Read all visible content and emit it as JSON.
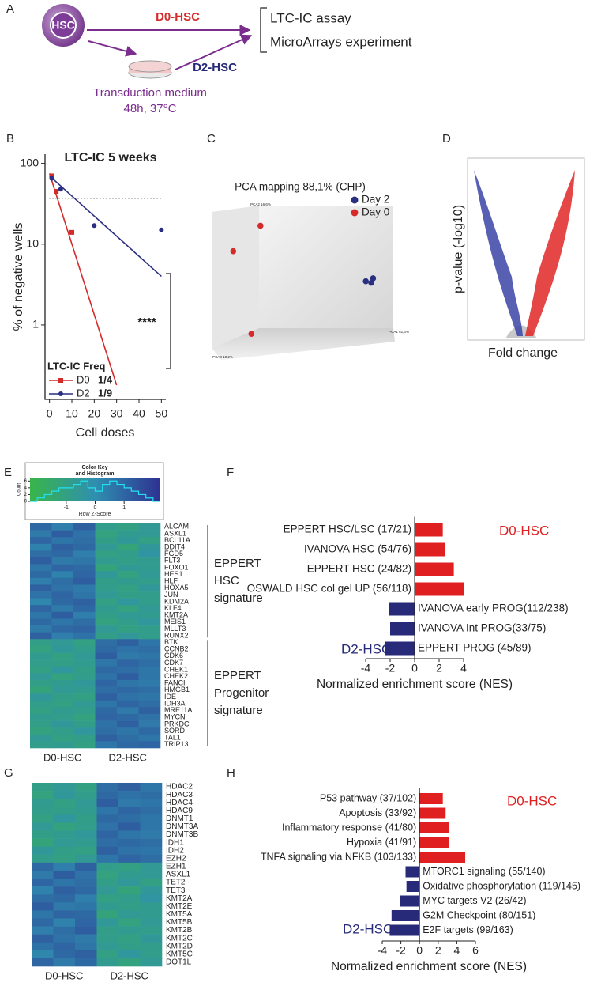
{
  "panel_labels": [
    "A",
    "B",
    "C",
    "D",
    "E",
    "F",
    "G",
    "H"
  ],
  "diagram": {
    "cell": "HSC",
    "d0": "D0-HSC",
    "d2": "D2-HSC",
    "outputs": [
      "LTC-IC assay",
      "MicroArrays experiment"
    ],
    "medium": [
      "Transduction medium",
      "48h, 37°C"
    ]
  },
  "chart_data": [
    {
      "type": "line",
      "title": "LTC-IC 5 weeks",
      "xlabel": "Cell doses",
      "ylabel": "% of negative wells",
      "log_y": true,
      "xlim": [
        -2,
        52
      ],
      "ylim": [
        0.12,
        130
      ],
      "xticks": [
        0,
        10,
        20,
        30,
        40,
        50
      ],
      "yticks": [
        1,
        10,
        100
      ],
      "threshold": 37,
      "annotation": "****",
      "legend_title": "LTC-IC Freq",
      "series": [
        {
          "name": "D0",
          "freq": "1/4",
          "color": "#d42a2a",
          "marker": "square",
          "x": [
            1,
            3,
            10
          ],
          "values": [
            70,
            45,
            14
          ],
          "fit_x": [
            0,
            30
          ],
          "fit_values": [
            75,
            0.18
          ]
        },
        {
          "name": "D2",
          "freq": "1/9",
          "color": "#2b2f80",
          "marker": "circle",
          "x": [
            1,
            5,
            20,
            50
          ],
          "values": [
            65,
            48,
            17,
            15
          ],
          "fit_x": [
            0,
            50
          ],
          "fit_values": [
            70,
            4
          ]
        }
      ]
    },
    {
      "type": "scatter3d",
      "title": "PCA mapping 88,1% (CHP)",
      "axis_labels": [
        "PCA2 16,6%",
        "PCA1 61,4%",
        "PCA3 10,2%"
      ],
      "xlim": [
        0,
        100
      ],
      "ylim": [
        0,
        100
      ],
      "series": [
        {
          "name": "Day 2",
          "color": "#2b2f80",
          "x": [
            84,
            87,
            88
          ],
          "values": [
            47,
            46,
            49
          ]
        },
        {
          "name": "Day 0",
          "color": "#d42a2a",
          "x": [
            26,
            11,
            21
          ],
          "values": [
            84,
            67,
            12
          ]
        }
      ]
    },
    {
      "type": "volcano",
      "xlabel": "Fold change",
      "ylabel": "p-value (-log10)",
      "colors": [
        "#3b44a6",
        "#e02727"
      ]
    },
    {
      "type": "heatmap",
      "column_groups": [
        "D0-HSC",
        "D2-HSC"
      ],
      "colors": [
        "#39b54a",
        "#2f8fb0",
        "#2e3192"
      ],
      "color_key": {
        "title": [
          "Color Key",
          "and Histogram"
        ],
        "xlabel": "Row Z-Score",
        "ylabel": "Count",
        "xlim": [
          -2.25,
          2.25
        ],
        "xticks": [
          -1,
          0,
          1
        ],
        "ylim": [
          0,
          7
        ],
        "yticks": [
          0,
          2,
          4,
          6
        ],
        "hist_color": "#22e0f0",
        "bins": [
          -2.25,
          -2,
          -1.75,
          -1.5,
          -1.25,
          -1,
          -0.75,
          -0.5,
          -0.25,
          0,
          0.25,
          0.5,
          0.75,
          1,
          1.25,
          1.5,
          1.75,
          2,
          2.25
        ],
        "counts": [
          0,
          1,
          2,
          3,
          4,
          4,
          5,
          6,
          4,
          3,
          5,
          6,
          5,
          4,
          3,
          2,
          1,
          0
        ]
      },
      "row_groups": [
        {
          "label": [
            "EPPERT",
            "HSC",
            "signature"
          ],
          "rows": [
            "ALCAM",
            "ASXL1",
            "BCL11A",
            "DDIT4",
            "FGD5",
            "FLT3",
            "FOXO1",
            "HES1",
            "HLF",
            "HOXA5",
            "JUN",
            "KDM2A",
            "KLF4",
            "KMT2A",
            "MEIS1",
            "MLLT3",
            "RUNX2"
          ],
          "values": [
            [
              0.9,
              0.4,
              1.1,
              -0.8,
              -1.0,
              -0.6
            ],
            [
              0.5,
              1.2,
              0.7,
              -1.1,
              -0.7,
              -0.6
            ],
            [
              1.0,
              0.6,
              0.8,
              -0.9,
              -0.5,
              -1.0
            ],
            [
              0.3,
              1.1,
              0.9,
              -0.6,
              -1.2,
              -0.5
            ],
            [
              0.8,
              0.9,
              0.4,
              -1.0,
              -0.8,
              -0.3
            ],
            [
              1.2,
              0.5,
              0.6,
              -0.7,
              -0.9,
              -0.7
            ],
            [
              0.6,
              1.0,
              0.9,
              -1.2,
              -0.6,
              -0.7
            ],
            [
              0.9,
              0.3,
              1.0,
              -0.5,
              -1.1,
              -0.6
            ],
            [
              0.4,
              0.8,
              1.2,
              -0.9,
              -0.7,
              -0.8
            ],
            [
              1.1,
              0.7,
              0.5,
              -0.8,
              -1.0,
              -0.5
            ],
            [
              0.7,
              1.0,
              0.6,
              -0.6,
              -0.9,
              -0.8
            ],
            [
              0.2,
              0.9,
              1.1,
              -1.0,
              -0.4,
              -0.8
            ],
            [
              1.0,
              0.5,
              0.9,
              -0.7,
              -1.1,
              -0.6
            ],
            [
              0.6,
              1.2,
              0.4,
              -0.9,
              -0.6,
              -0.7
            ],
            [
              0.9,
              0.6,
              0.8,
              -1.1,
              -0.8,
              -0.4
            ],
            [
              0.5,
              0.9,
              1.0,
              -0.6,
              -1.0,
              -0.8
            ],
            [
              1.1,
              0.4,
              0.7,
              -0.9,
              -0.5,
              -0.8
            ]
          ]
        },
        {
          "label": [
            "EPPERT",
            "Progenitor",
            "signature"
          ],
          "rows": [
            "BTK",
            "CCNB2",
            "CDK6",
            "CDK7",
            "CHEK1",
            "CHEK2",
            "FANCI",
            "HMGB1",
            "IDE",
            "IDH3A",
            "MRE11A",
            "MYCN",
            "PRKDC",
            "SORD",
            "TAL1",
            "TRIP13"
          ],
          "values": [
            [
              -0.9,
              -0.6,
              -1.0,
              0.8,
              1.1,
              0.6
            ],
            [
              -1.1,
              -0.5,
              -0.8,
              0.9,
              0.7,
              0.8
            ],
            [
              -0.7,
              -1.0,
              -0.6,
              1.2,
              0.5,
              0.6
            ],
            [
              -0.8,
              -0.9,
              -0.7,
              0.6,
              1.0,
              0.8
            ],
            [
              -1.0,
              -0.4,
              -0.9,
              0.9,
              0.8,
              0.6
            ],
            [
              -0.6,
              -1.1,
              -0.8,
              0.7,
              1.2,
              0.6
            ],
            [
              -0.9,
              -0.7,
              -0.5,
              1.0,
              0.6,
              0.5
            ],
            [
              -1.2,
              -0.6,
              -0.7,
              0.8,
              0.9,
              0.8
            ],
            [
              -0.5,
              -0.9,
              -1.0,
              1.1,
              0.7,
              0.6
            ],
            [
              -0.8,
              -1.0,
              -0.6,
              0.6,
              1.0,
              0.8
            ],
            [
              -1.0,
              -0.7,
              -0.8,
              0.9,
              0.5,
              1.1
            ],
            [
              -0.7,
              -0.8,
              -1.1,
              1.0,
              0.9,
              0.7
            ],
            [
              -0.9,
              -0.5,
              -0.9,
              0.7,
              1.1,
              0.5
            ],
            [
              -1.1,
              -0.8,
              -0.4,
              0.8,
              0.6,
              0.9
            ],
            [
              -0.6,
              -1.0,
              -0.9,
              1.1,
              0.8,
              0.6
            ],
            [
              -0.8,
              -0.7,
              -1.0,
              0.6,
              0.9,
              1.0
            ]
          ]
        }
      ]
    },
    {
      "type": "hbar",
      "xlabel": "Normalized enrichment score (NES)",
      "xlim": [
        -4,
        4
      ],
      "xticks": [
        -4,
        -2,
        0,
        2,
        4
      ],
      "pos_color": "#e02020",
      "neg_color": "#262a78",
      "annotations": [
        {
          "text": "D0-HSC",
          "color": "#e02020"
        },
        {
          "text": "D2-HSC",
          "color": "#262a78"
        }
      ],
      "categories": [
        "EPPERT HSC/LSC (17/21)",
        "IVANOVA HSC (54/76)",
        "EPPERT HSC (24/82)",
        "OSWALD HSC col gel UP (56/118)",
        "IVANOVA early PROG(112/238)",
        "IVANOVA Int PROG(33/75)",
        "EPPERT PROG (45/89)"
      ],
      "values": [
        2.3,
        2.5,
        3.2,
        4.0,
        -2.1,
        -2.0,
        -2.4
      ]
    },
    {
      "type": "heatmap",
      "column_groups": [
        "D0-HSC",
        "D2-HSC"
      ],
      "colors": [
        "#39b54a",
        "#2f8fb0",
        "#2e3192"
      ],
      "zlim": [
        -2.25,
        2.25
      ],
      "row_groups": [
        {
          "rows": [
            "HDAC2",
            "HDAC3",
            "HDAC4",
            "HDAC9",
            "DNMT1",
            "DNMT3A",
            "DNMT3B",
            "IDH1",
            "IDH2",
            "EZH2",
            "EZH1",
            "ASXL1",
            "TET2",
            "TET3",
            "KMT2A",
            "KMT2E",
            "KMT5A",
            "KMT5B",
            "KMT2B",
            "KMT2C",
            "KMT2D",
            "KMT5C",
            "DOT1L"
          ],
          "values": [
            [
              -0.9,
              -0.6,
              -1.0,
              0.8,
              1.1,
              0.6
            ],
            [
              -1.1,
              -0.5,
              -0.8,
              0.9,
              0.7,
              0.8
            ],
            [
              -0.7,
              -1.0,
              -0.6,
              1.2,
              0.5,
              0.6
            ],
            [
              -0.8,
              -0.9,
              -0.7,
              0.6,
              1.0,
              0.8
            ],
            [
              -1.0,
              -0.4,
              -0.9,
              0.9,
              0.8,
              0.6
            ],
            [
              -0.6,
              -1.1,
              -0.8,
              0.7,
              1.2,
              0.6
            ],
            [
              -0.9,
              -0.7,
              -0.5,
              1.0,
              0.6,
              0.5
            ],
            [
              -1.2,
              -0.6,
              -0.7,
              0.8,
              0.9,
              0.8
            ],
            [
              -0.5,
              -0.9,
              -1.0,
              1.1,
              0.7,
              0.6
            ],
            [
              -0.8,
              -1.0,
              -0.6,
              0.6,
              1.0,
              0.8
            ],
            [
              0.9,
              0.4,
              1.1,
              -0.8,
              -1.0,
              -0.6
            ],
            [
              0.5,
              1.2,
              0.7,
              -1.1,
              -0.7,
              -0.6
            ],
            [
              1.0,
              0.6,
              0.8,
              -0.9,
              -0.5,
              -1.0
            ],
            [
              0.3,
              1.1,
              0.9,
              -0.6,
              -1.2,
              -0.5
            ],
            [
              0.8,
              0.9,
              0.4,
              -1.0,
              -0.8,
              -0.3
            ],
            [
              1.2,
              0.5,
              0.6,
              -0.7,
              -0.9,
              -0.7
            ],
            [
              0.6,
              1.0,
              0.9,
              -1.2,
              -0.6,
              -0.7
            ],
            [
              0.9,
              0.3,
              1.0,
              -0.5,
              -1.1,
              -0.6
            ],
            [
              0.4,
              0.8,
              1.2,
              -0.9,
              -0.7,
              -0.8
            ],
            [
              1.1,
              0.7,
              0.5,
              -0.8,
              -1.0,
              -0.5
            ],
            [
              0.7,
              1.0,
              0.6,
              -0.6,
              -0.9,
              -0.8
            ],
            [
              0.2,
              0.9,
              1.1,
              -1.0,
              -0.4,
              -0.8
            ],
            [
              1.0,
              0.5,
              0.9,
              -0.7,
              -1.1,
              -0.6
            ]
          ]
        }
      ]
    },
    {
      "type": "hbar",
      "xlabel": "Normalized enrichment score (NES)",
      "xlim": [
        -4,
        6
      ],
      "xticks": [
        -4,
        -2,
        0,
        2,
        4,
        6
      ],
      "pos_color": "#e02020",
      "neg_color": "#262a78",
      "annotations": [
        {
          "text": "D0-HSC",
          "color": "#e02020"
        },
        {
          "text": "D2-HSC",
          "color": "#262a78"
        }
      ],
      "categories": [
        "P53 pathway (37/102)",
        "Apoptosis (33/92)",
        "Inflammatory response (41/80)",
        "Hypoxia (41/91)",
        "TNFA signaling via NFKB (103/133)",
        "MTORC1 signaling (55/140)",
        "Oxidative phosphorylation (119/145)",
        "MYC targets V2 (26/42)",
        "G2M Checkpoint (80/151)",
        "E2F targets (99/163)"
      ],
      "values": [
        2.5,
        2.8,
        3.2,
        3.2,
        4.9,
        -1.5,
        -1.4,
        -2.1,
        -3.0,
        -3.2
      ]
    }
  ]
}
